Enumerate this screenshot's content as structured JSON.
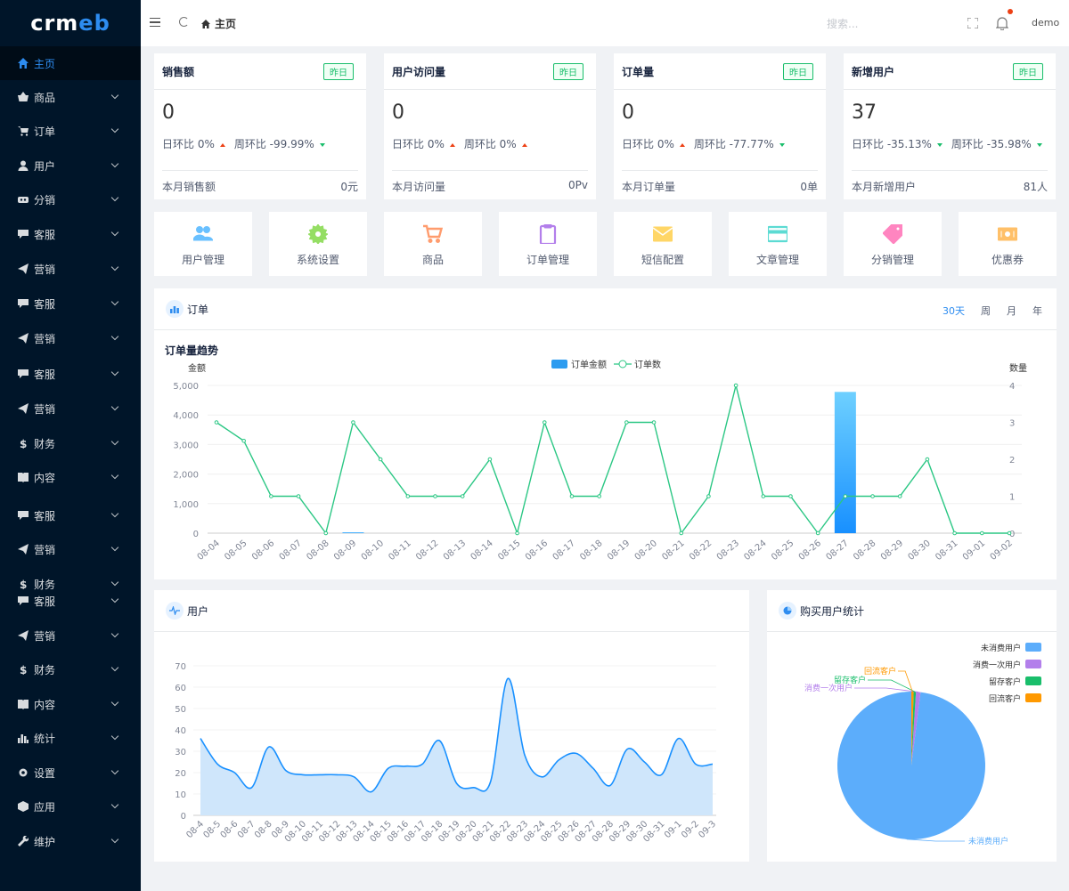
{
  "brand": {
    "logo_text_1": "crm",
    "logo_text_2": "eb"
  },
  "sidebar": {
    "items": [
      {
        "label": "主页",
        "icon": "home-icon",
        "active": true
      },
      {
        "label": "商品",
        "icon": "basket-icon"
      },
      {
        "label": "订单",
        "icon": "cart-icon"
      },
      {
        "label": "用户",
        "icon": "user-icon"
      },
      {
        "label": "分销",
        "icon": "share-icon"
      },
      {
        "label": "客服",
        "icon": "chat-icon"
      },
      {
        "label": "营销",
        "icon": "send-icon"
      },
      {
        "label": "客服",
        "icon": "chat-icon"
      },
      {
        "label": "营销",
        "icon": "send-icon"
      },
      {
        "label": "客服",
        "icon": "chat-icon"
      },
      {
        "label": "营销",
        "icon": "send-icon"
      },
      {
        "label": "财务",
        "icon": "dollar-icon"
      },
      {
        "label": "内容",
        "icon": "book-icon"
      },
      {
        "label": "客服",
        "icon": "chat-icon"
      },
      {
        "label": "营销",
        "icon": "send-icon"
      },
      {
        "label": "财务",
        "icon": "dollar-icon"
      },
      {
        "label": "客服",
        "icon": "chat-icon"
      },
      {
        "label": "营销",
        "icon": "send-icon"
      },
      {
        "label": "财务",
        "icon": "dollar-icon"
      },
      {
        "label": "内容",
        "icon": "book-icon"
      },
      {
        "label": "统计",
        "icon": "stats-icon"
      },
      {
        "label": "设置",
        "icon": "gear-icon"
      },
      {
        "label": "应用",
        "icon": "cube-icon"
      },
      {
        "label": "维护",
        "icon": "wrench-icon"
      }
    ]
  },
  "header": {
    "breadcrumb": "主页",
    "search_placeholder": "搜索...",
    "user": "demo"
  },
  "stats": [
    {
      "title": "销售额",
      "tag": "昨日",
      "value": "0",
      "day_label": "日环比 0%",
      "day_trend": "up",
      "week_label": "周环比 -99.99%",
      "week_trend": "down",
      "foot_label": "本月销售额",
      "foot_value": "0元"
    },
    {
      "title": "用户访问量",
      "tag": "昨日",
      "value": "0",
      "day_label": "日环比 0%",
      "day_trend": "up",
      "week_label": "周环比 0%",
      "week_trend": "up",
      "foot_label": "本月访问量",
      "foot_value": "0Pv"
    },
    {
      "title": "订单量",
      "tag": "昨日",
      "value": "0",
      "day_label": "日环比 0%",
      "day_trend": "up",
      "week_label": "周环比 -77.77%",
      "week_trend": "down",
      "foot_label": "本月订单量",
      "foot_value": "0单"
    },
    {
      "title": "新增用户",
      "tag": "昨日",
      "value": "37",
      "day_label": "日环比 -35.13%",
      "day_trend": "down",
      "week_label": "周环比 -35.98%",
      "week_trend": "down",
      "foot_label": "本月新增用户",
      "foot_value": "81人"
    }
  ],
  "tiles": [
    {
      "label": "用户管理",
      "icon": "users-icon",
      "color": "#69c0ff"
    },
    {
      "label": "系统设置",
      "icon": "gear-icon",
      "color": "#95de64"
    },
    {
      "label": "商品",
      "icon": "cart-icon",
      "color": "#ff9c6e"
    },
    {
      "label": "订单管理",
      "icon": "clipboard-icon",
      "color": "#b37feb"
    },
    {
      "label": "短信配置",
      "icon": "mail-icon",
      "color": "#ffd666"
    },
    {
      "label": "文章管理",
      "icon": "card-icon",
      "color": "#5cdbd3"
    },
    {
      "label": "分销管理",
      "icon": "tag-icon",
      "color": "#ff85c0"
    },
    {
      "label": "优惠券",
      "icon": "coupon-icon",
      "color": "#ffc069"
    }
  ],
  "order_panel": {
    "title": "订单",
    "tabs": [
      "30天",
      "周",
      "月",
      "年"
    ],
    "active_tab": "30天"
  },
  "user_panel": {
    "title": "用户"
  },
  "pie_panel": {
    "title": "购买用户统计"
  },
  "chart_data": [
    {
      "type": "bar",
      "title": "订单量趋势",
      "left_axis_label": "金额",
      "right_axis_label": "数量",
      "categories": [
        "08-04",
        "08-05",
        "08-06",
        "08-07",
        "08-08",
        "08-09",
        "08-10",
        "08-11",
        "08-12",
        "08-13",
        "08-14",
        "08-15",
        "08-16",
        "08-17",
        "08-18",
        "08-19",
        "08-20",
        "08-21",
        "08-22",
        "08-23",
        "08-24",
        "08-25",
        "08-26",
        "08-27",
        "08-28",
        "08-29",
        "08-30",
        "08-31",
        "09-01",
        "09-02"
      ],
      "yticks_left": [
        "5,000",
        "4,000",
        "3,000",
        "2,000",
        "1,000",
        "0"
      ],
      "yticks_right": [
        "4",
        "3",
        "2",
        "1",
        "0"
      ],
      "ylim_left": [
        0,
        5000
      ],
      "ylim_right": [
        0,
        4
      ],
      "series": [
        {
          "name": "订单金额",
          "kind": "bar",
          "axis": "left",
          "color": "#2d9cf0",
          "values": [
            0,
            0,
            0,
            0,
            0,
            10,
            0,
            0,
            0,
            0,
            0,
            0,
            0,
            0,
            0,
            0,
            0,
            0,
            0,
            0,
            0,
            0,
            0,
            4780,
            0,
            0,
            0,
            0,
            0,
            0
          ]
        },
        {
          "name": "订单数",
          "kind": "line",
          "axis": "right",
          "color": "#2bc784",
          "values": [
            3,
            2.5,
            1,
            1,
            0,
            3,
            2,
            1,
            1,
            1,
            2,
            0,
            3,
            1,
            1,
            3,
            3,
            0,
            1,
            4,
            1,
            1,
            0,
            1,
            1,
            1,
            2,
            0,
            0,
            0
          ]
        }
      ]
    },
    {
      "type": "area",
      "categories": [
        "08-4",
        "08-5",
        "08-6",
        "08-7",
        "08-8",
        "08-9",
        "08-10",
        "08-11",
        "08-12",
        "08-13",
        "08-14",
        "08-15",
        "08-16",
        "08-17",
        "08-18",
        "08-19",
        "08-20",
        "08-21",
        "08-22",
        "08-23",
        "08-24",
        "08-25",
        "08-26",
        "08-27",
        "08-28",
        "08-29",
        "08-30",
        "08-31",
        "09-1",
        "09-2",
        "09-3"
      ],
      "yticks": [
        "70",
        "60",
        "50",
        "40",
        "30",
        "20",
        "10",
        "0"
      ],
      "ylim": [
        0,
        70
      ],
      "color": "#1890ff",
      "values": [
        36,
        24,
        20,
        13,
        32,
        21,
        19,
        19,
        19,
        18,
        11,
        22,
        23,
        24,
        35,
        15,
        13,
        16,
        64,
        28,
        18,
        26,
        29,
        22,
        14,
        31,
        25,
        19,
        36,
        24,
        24
      ]
    },
    {
      "type": "pie",
      "legend": [
        "未消费用户",
        "消费一次用户",
        "留存客户",
        "回流客户"
      ],
      "colors": [
        "#5cadfb",
        "#b37feb",
        "#19be6b",
        "#ff9900"
      ],
      "values": [
        98,
        1,
        0.5,
        0.5
      ],
      "slice_labels": [
        "未消费用户",
        "消费一次用户",
        "留存客户",
        "回流客户"
      ]
    }
  ]
}
